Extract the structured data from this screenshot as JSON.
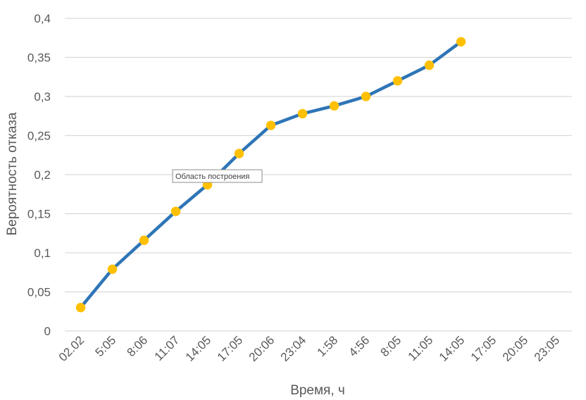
{
  "chart_data": {
    "type": "line",
    "title": "",
    "xlabel": "Время, ч",
    "ylabel": "Вероятность отказа",
    "categories": [
      "02.02",
      "5:05",
      "8:06",
      "11:07",
      "14:05",
      "17:05",
      "20:06",
      "23:04",
      "1:58",
      "4:56",
      "8:05",
      "11:05",
      "14:05",
      "17:05",
      "20:05",
      "23:05"
    ],
    "series": [
      {
        "values": [
          0.03,
          0.079,
          0.116,
          0.153,
          0.187,
          0.227,
          0.263,
          0.278,
          0.288,
          0.3,
          0.32,
          0.34,
          0.37,
          null,
          null,
          null
        ]
      }
    ],
    "y_ticks": [
      0,
      0.05,
      0.1,
      0.15,
      0.2,
      0.25,
      0.3,
      0.35,
      0.4
    ],
    "y_tick_labels": [
      "0",
      "0,05",
      "0,1",
      "0,15",
      "0,2",
      "0,25",
      "0,3",
      "0,35",
      "0,4"
    ],
    "ylim": [
      0,
      0.4
    ],
    "grid": "horizontal",
    "legend": "none",
    "tooltip": "Область построения",
    "colors": {
      "line": "#2E75B6",
      "marker": "#FFC000",
      "grid": "#D9D9D9",
      "text": "#595959"
    }
  }
}
